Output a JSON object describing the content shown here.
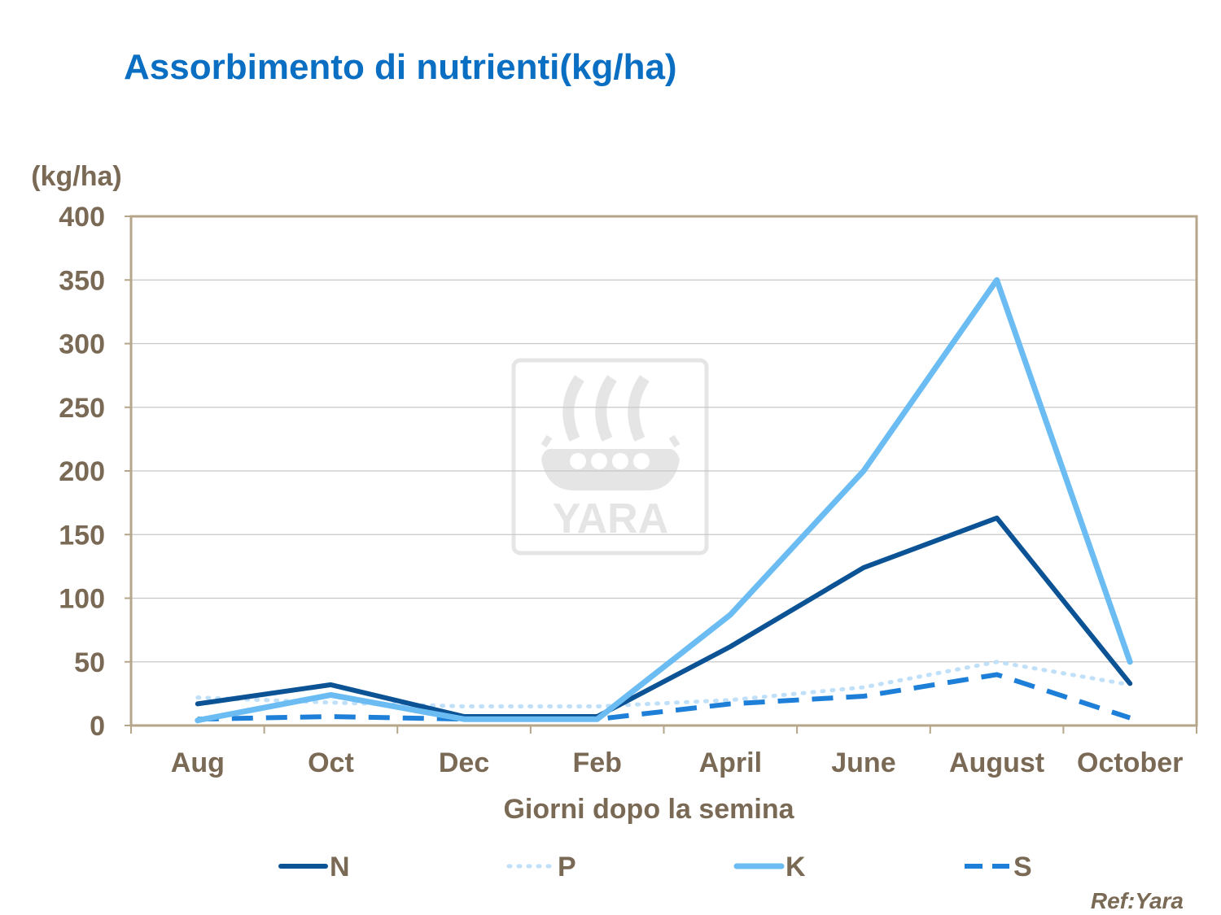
{
  "header": {
    "title": "Assorbimento di nutrienti(kg/ha)"
  },
  "footer": {
    "ref": "Ref:Yara"
  },
  "watermark": {
    "text": "YARA",
    "icon": "yara-viking-ship-logo"
  },
  "colors": {
    "N": "#0b5394",
    "P": "#bfe0f8",
    "K": "#6bbcf3",
    "S": "#1e7fd8",
    "axis_text": "#7a6a55",
    "frame": "#b5a68a",
    "grid": "#c8c8c8"
  },
  "chart_data": {
    "type": "line",
    "title": "Assorbimento di nutrienti(kg/ha)",
    "ylabel": "(kg/ha)",
    "xlabel": "Giorni dopo la semina",
    "ylim": [
      0,
      400
    ],
    "yticks": [
      0,
      50,
      100,
      150,
      200,
      250,
      300,
      350,
      400
    ],
    "categories": [
      "Aug",
      "Oct",
      "Dec",
      "Feb",
      "April",
      "June",
      "August",
      "October"
    ],
    "grid": true,
    "legend_position": "bottom",
    "series": [
      {
        "name": "N",
        "style": "solid",
        "values": [
          17,
          32,
          7,
          7,
          62,
          124,
          163,
          33
        ]
      },
      {
        "name": "P",
        "style": "dotted",
        "values": [
          22,
          18,
          15,
          15,
          20,
          30,
          50,
          32
        ]
      },
      {
        "name": "K",
        "style": "solid",
        "values": [
          4,
          24,
          5,
          5,
          87,
          200,
          350,
          50
        ]
      },
      {
        "name": "S",
        "style": "dashed",
        "values": [
          5,
          7,
          5,
          5,
          17,
          23,
          40,
          6
        ]
      }
    ]
  }
}
